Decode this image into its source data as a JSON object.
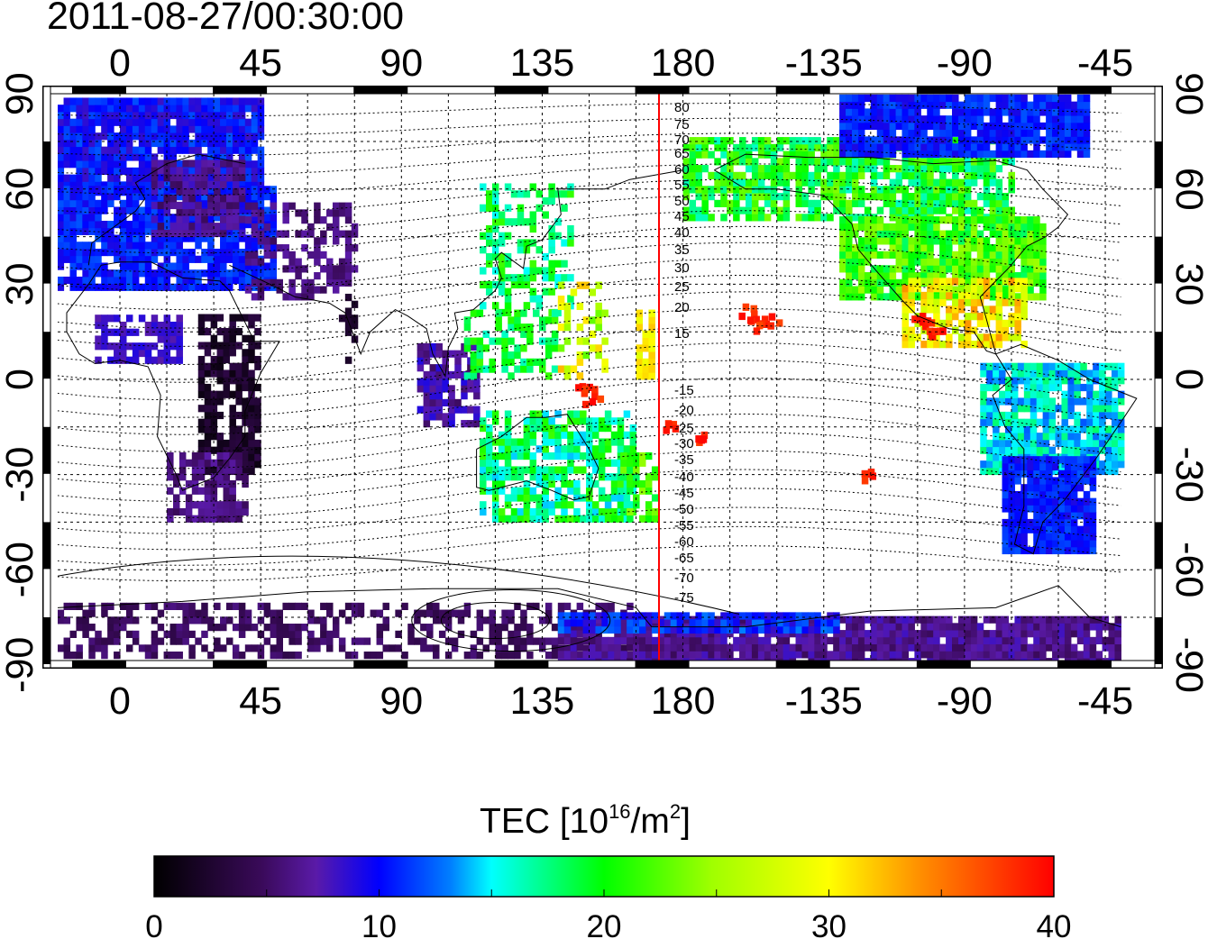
{
  "timestamp": "2011-08-27/00:30:00",
  "map": {
    "top_lon_labels": [
      "0",
      "45",
      "90",
      "135",
      "180",
      "-135",
      "-90",
      "-45"
    ],
    "bottom_lon_labels": [
      "0",
      "45",
      "90",
      "135",
      "180",
      "-135",
      "-90",
      "-45"
    ],
    "left_lat_labels": [
      "90",
      "60",
      "30",
      "0",
      "-30",
      "-60",
      "-90"
    ],
    "right_lat_labels": [
      "90",
      "60",
      "30",
      "0",
      "-30",
      "-60",
      "-90"
    ],
    "lon_range": [
      -20,
      320
    ],
    "lat_range": [
      -90,
      90
    ],
    "meridian_marker_lon": 172,
    "meridian_marker_color": "#ff0000",
    "grid": true,
    "magnetic_latitude_labels": [
      "80",
      "75",
      "70",
      "65",
      "60",
      "55",
      "50",
      "45",
      "40",
      "35",
      "30",
      "25",
      "20",
      "15",
      "-15",
      "-20",
      "-25",
      "-30",
      "-35",
      "-40",
      "-45",
      "-50",
      "-55",
      "-60",
      "-65",
      "-70",
      "-75"
    ]
  },
  "colorbar": {
    "title_prefix": "TEC  [10",
    "title_exp": "16",
    "title_mid": "/m",
    "title_exp2": "2",
    "title_suffix": "]",
    "tick_labels": [
      "0",
      "10",
      "20",
      "30",
      "40"
    ],
    "range": [
      0,
      40
    ],
    "colors": [
      "#000000",
      "#3a0a5a",
      "#5a1aa8",
      "#0000ff",
      "#00c8ff",
      "#00ffff",
      "#00ff00",
      "#ffff00",
      "#ff8000",
      "#ff0000"
    ]
  }
}
